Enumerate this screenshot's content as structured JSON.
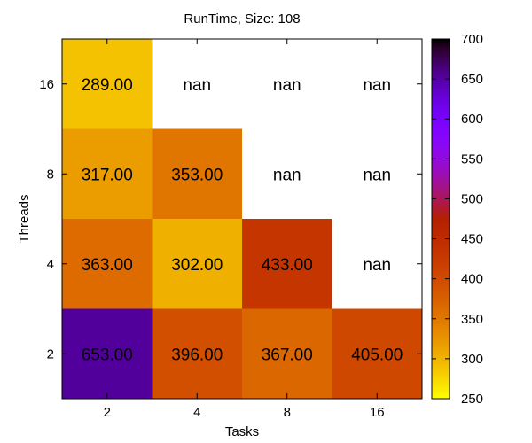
{
  "chart_data": {
    "type": "heatmap",
    "title": "RunTime, Size: 108",
    "xlabel": "Tasks",
    "ylabel": "Threads",
    "x_categories": [
      "2",
      "4",
      "8",
      "16"
    ],
    "y_categories": [
      "2",
      "4",
      "8",
      "16"
    ],
    "values": [
      [
        653,
        396,
        367,
        405
      ],
      [
        363,
        302,
        433,
        null
      ],
      [
        317,
        353,
        null,
        null
      ],
      [
        289,
        null,
        null,
        null
      ]
    ],
    "cell_labels": [
      [
        "653.00",
        "396.00",
        "367.00",
        "405.00"
      ],
      [
        "363.00",
        "302.00",
        "433.00",
        "nan"
      ],
      [
        "317.00",
        "353.00",
        "nan",
        "nan"
      ],
      [
        "289.00",
        "nan",
        "nan",
        "nan"
      ]
    ],
    "colorbar": {
      "min": 250,
      "max": 700,
      "ticks": [
        "250",
        "300",
        "350",
        "400",
        "450",
        "500",
        "550",
        "600",
        "650",
        "700"
      ],
      "colormap": "gnuplot-pm3d"
    },
    "grid": false
  }
}
